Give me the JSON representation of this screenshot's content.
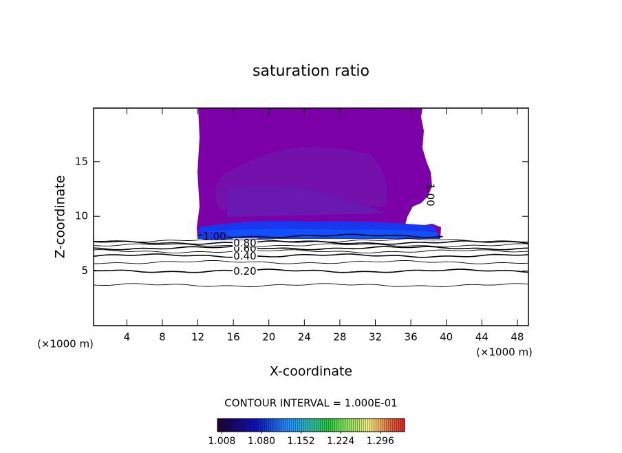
{
  "chart_data": {
    "type": "contour",
    "title": "saturation ratio",
    "x_label": "X-coordinate",
    "y_label": "Z-coordinate",
    "x_unit": "(×1000 m)",
    "xlim": [
      0.25,
      49.25
    ],
    "ylim": [
      0,
      19.9
    ],
    "xticks": [
      4,
      8,
      12,
      16,
      20,
      24,
      28,
      32,
      36,
      40,
      44,
      48
    ],
    "yticks": [
      5,
      10,
      15
    ],
    "contours": [
      {
        "level": 0.1,
        "z": 3.7
      },
      {
        "level": 0.2,
        "label": "0.20",
        "z": 5.0
      },
      {
        "level": 0.3,
        "z": 5.8
      },
      {
        "level": 0.4,
        "label": "0.40",
        "z": 6.4
      },
      {
        "level": 0.5,
        "z": 6.8
      },
      {
        "level": 0.6,
        "label": "0.60",
        "z": 7.1
      },
      {
        "level": 0.7,
        "z": 7.35
      },
      {
        "level": 0.8,
        "label": "0.80",
        "z": 7.6
      },
      {
        "level": 0.9,
        "z": 7.8
      },
      {
        "level": 1.0,
        "label": "1.00",
        "z": 8.2
      }
    ],
    "colorbar": {
      "title": "CONTOUR INTERVAL = 1.000E-01",
      "lim": [
        1.0,
        1.34
      ],
      "colors": [
        "#200030",
        "#1010c0",
        "#20a0ff",
        "#30d040",
        "#f0f080",
        "#e02020"
      ],
      "ticks": [
        1.008,
        {
          "value": 1.08,
          "label": "1.080"
        },
        1.152,
        1.224,
        1.296
      ]
    }
  }
}
